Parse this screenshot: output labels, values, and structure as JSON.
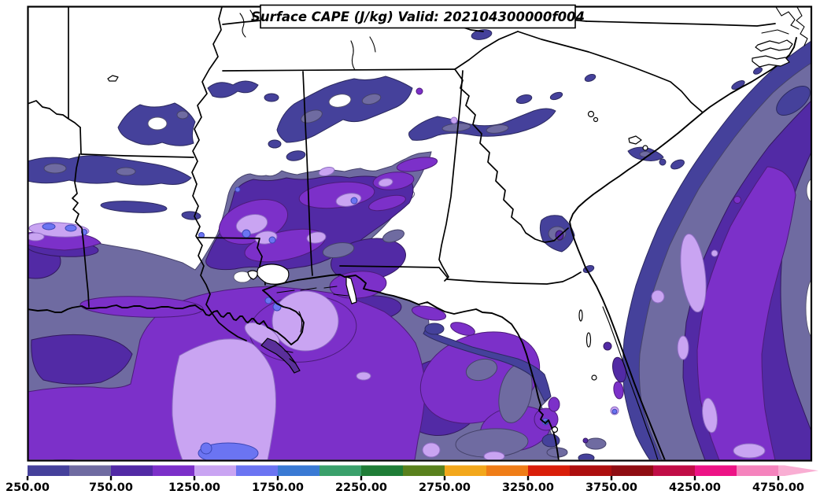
{
  "figure": {
    "title": "Surface CAPE (J/kg) Valid: 202104300000f004",
    "variable": "Surface CAPE",
    "unit": "J/kg",
    "valid_label": "202104300000f004"
  },
  "map": {
    "background_color": "#ffffff",
    "boundary_color": "#000000",
    "palette": {
      "cape_250_500": "#45419b",
      "cape_500_750": "#6f6ba1",
      "cape_750_1000": "#522aa5",
      "cape_1000_1250": "#7c30c9",
      "cape_1250_1500": "#c9a4f2",
      "cape_1500_1750": "#6b74f2",
      "cape_1750_2000": "#3a7ad4"
    }
  },
  "colorbar": {
    "orientation": "horizontal",
    "arrow_end": "right",
    "contour_interval": 250,
    "levels": [
      250,
      500,
      750,
      1000,
      1250,
      1500,
      1750,
      2000,
      2250,
      2500,
      2750,
      3000,
      3250,
      3500,
      3750,
      4000,
      4250,
      4500,
      4750,
      5000
    ],
    "tick_labels": [
      "250.00",
      "750.00",
      "1250.00",
      "1750.00",
      "2250.00",
      "2750.00",
      "3250.00",
      "3750.00",
      "4250.00",
      "4750.00"
    ],
    "segment_colors": [
      "#45419b",
      "#6f6ba1",
      "#522aa5",
      "#7c30c9",
      "#c9a4f2",
      "#6b74f2",
      "#3a7ad4",
      "#3aa06b",
      "#1f7d37",
      "#59811d",
      "#f2a71c",
      "#ef7d17",
      "#d91e0a",
      "#ad0e0e",
      "#8f0d13",
      "#c00d46",
      "#ed1386",
      "#f583bd",
      "#f9aed3"
    ]
  }
}
